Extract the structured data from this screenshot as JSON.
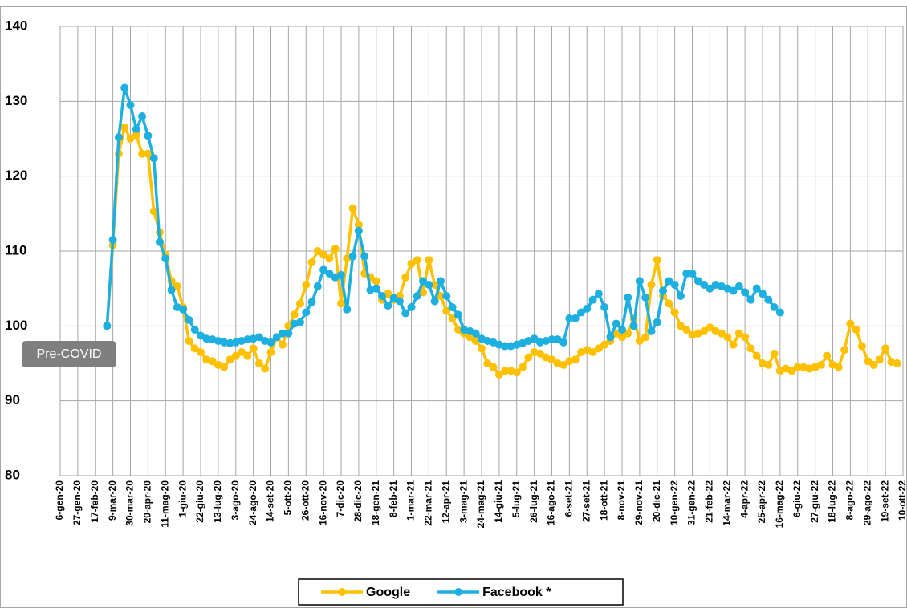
{
  "chart_data": {
    "type": "line",
    "annotation": "Pre-COVID",
    "categories": [
      "6-gen-20",
      null,
      null,
      "27-gen-20",
      null,
      null,
      "17-feb-20",
      null,
      null,
      "9-mar-20",
      null,
      null,
      "30-mar-20",
      null,
      null,
      "20-apr-20",
      null,
      null,
      "11-mag-20",
      null,
      null,
      "1-giu-20",
      null,
      null,
      "22-giu-20",
      null,
      null,
      "13-lug-20",
      null,
      null,
      "3-ago-20",
      null,
      null,
      "24-ago-20",
      null,
      null,
      "14-set-20",
      null,
      null,
      "5-ott-20",
      null,
      null,
      "26-ott-20",
      null,
      null,
      "16-nov-20",
      null,
      null,
      "7-dic-20",
      null,
      null,
      "28-dic-20",
      null,
      null,
      "18-gen-21",
      null,
      null,
      "8-feb-21",
      null,
      null,
      "1-mar-21",
      null,
      null,
      "22-mar-21",
      null,
      null,
      "12-apr-21",
      null,
      null,
      "3-mag-21",
      null,
      null,
      "24-mag-21",
      null,
      null,
      "14-giu-21",
      null,
      null,
      "5-lug-21",
      null,
      null,
      "26-lug-21",
      null,
      null,
      "16-ago-21",
      null,
      null,
      "6-set-21",
      null,
      null,
      "27-set-21",
      null,
      null,
      "18-ott-21",
      null,
      null,
      "8-nov-21",
      null,
      null,
      "29-nov-21",
      null,
      null,
      "20-dic-21",
      null,
      null,
      "10-gen-22",
      null,
      null,
      "31-gen-22",
      null,
      null,
      "21-feb-22",
      null,
      null,
      "14-mar-22",
      null,
      null,
      "4-apr-22",
      null,
      null,
      "25-apr-22",
      null,
      null,
      "16-mag-22",
      null,
      null,
      "6-giu-22",
      null,
      null,
      "27-giu-22",
      null,
      null,
      "18-lug-22",
      null,
      null,
      "8-ago-22",
      null,
      null,
      "29-ago-22",
      null,
      null,
      "19-set-22",
      null,
      null,
      "10-ott-22"
    ],
    "series": [
      {
        "name": "Google",
        "color": "#FFC000",
        "values": [
          null,
          null,
          null,
          null,
          null,
          null,
          null,
          null,
          100,
          110.8,
          123,
          126.5,
          125,
          125.5,
          123,
          123,
          115.3,
          112.5,
          109.5,
          106,
          105.3,
          102.5,
          98,
          97,
          96.5,
          95.5,
          95.3,
          94.8,
          94.5,
          95.5,
          96,
          96.5,
          96,
          97,
          95,
          94.3,
          96.5,
          98.5,
          97.5,
          100,
          101.5,
          103,
          105.5,
          108.5,
          110,
          109.5,
          109,
          110.3,
          103,
          109,
          115.7,
          113.5,
          107,
          106.5,
          106,
          103.5,
          104.3,
          103.5,
          104,
          106.5,
          108.3,
          108.8,
          104.5,
          108.8,
          105.5,
          104,
          102,
          101,
          99.5,
          99,
          98.5,
          98,
          97,
          95,
          94.5,
          93.5,
          94,
          94,
          93.8,
          94.5,
          95.8,
          96.5,
          96.3,
          95.8,
          95.5,
          95,
          94.8,
          95.3,
          95.5,
          96.5,
          96.8,
          96.5,
          97,
          97.5,
          98,
          99,
          98.5,
          99,
          101,
          98,
          98.5,
          105.5,
          108.8,
          104,
          103,
          101.8,
          100,
          99.5,
          98.8,
          99,
          99.3,
          99.8,
          99.3,
          99,
          98.5,
          97.5,
          99,
          98.5,
          97,
          96,
          95,
          94.8,
          96.3,
          94,
          94.3,
          94,
          94.5,
          94.5,
          94.3,
          94.5,
          94.8,
          96,
          94.8,
          94.5,
          96.8,
          100.3,
          99.5,
          97.3,
          95.3,
          94.8,
          95.5,
          97,
          95.2,
          95,
          null
        ]
      },
      {
        "name": "Facebook *",
        "color": "#1CAFE0",
        "values": [
          null,
          null,
          null,
          null,
          null,
          null,
          null,
          null,
          100,
          111.5,
          125.2,
          131.8,
          129.5,
          126.3,
          128,
          125.4,
          122.4,
          111.2,
          109,
          104.8,
          102.5,
          102.2,
          100.8,
          99.5,
          98.7,
          98.3,
          98.2,
          98,
          97.8,
          97.7,
          97.8,
          98,
          98.2,
          98.3,
          98.5,
          98,
          97.8,
          98.5,
          99,
          99,
          100.3,
          100.5,
          101.8,
          103.2,
          105.3,
          107.5,
          107,
          106.5,
          106.8,
          102.2,
          109.3,
          112.7,
          109.3,
          104.8,
          105,
          104,
          102.7,
          103.7,
          103.3,
          101.7,
          102.5,
          104,
          106,
          105.5,
          103.3,
          106,
          104,
          102.5,
          101.5,
          99.5,
          99.3,
          99,
          98.3,
          98,
          97.8,
          97.5,
          97.3,
          97.3,
          97.5,
          97.7,
          98,
          98.3,
          97.8,
          98,
          98.2,
          98.2,
          97.8,
          101,
          101,
          101.8,
          102.3,
          103.5,
          104.3,
          102.5,
          98.5,
          100.3,
          99.5,
          103.8,
          100,
          106,
          103.8,
          99.3,
          100.5,
          104.7,
          106,
          105.5,
          104,
          107,
          107,
          106,
          105.5,
          105,
          105.5,
          105.3,
          105,
          104.7,
          105.3,
          104.5,
          103.5,
          105,
          104.3,
          103.5,
          102.5,
          101.8,
          null,
          null,
          null,
          null,
          null,
          null,
          null,
          null,
          null,
          null,
          null,
          null,
          null,
          null,
          null,
          null,
          null,
          null,
          null,
          null,
          null
        ]
      }
    ],
    "ylim": [
      80,
      140
    ],
    "yticks": [
      80,
      90,
      100,
      110,
      120,
      130,
      140
    ],
    "grid": true,
    "legend": "bottom"
  }
}
